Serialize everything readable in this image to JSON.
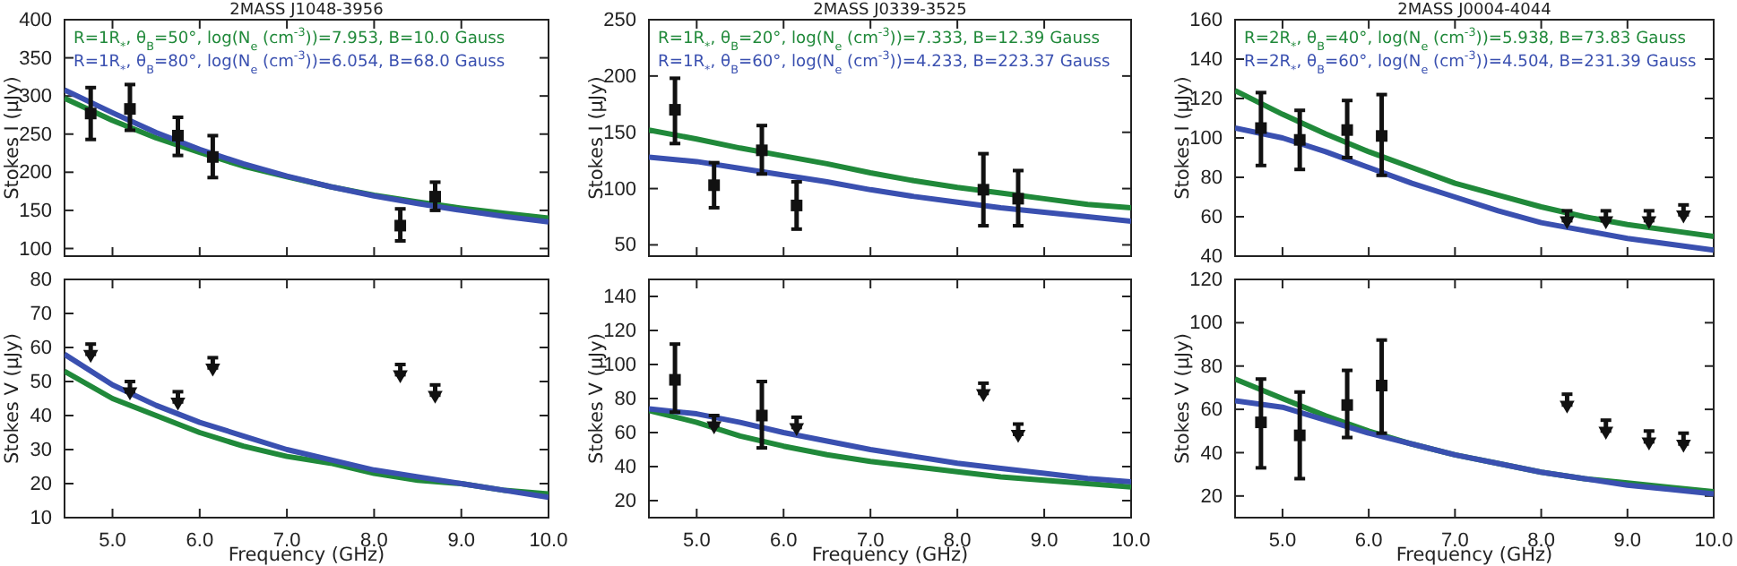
{
  "chart_data": [
    {
      "type": "line",
      "title": "2MASS J1048-3956",
      "ylabel": "Stokes I (μJy)",
      "xlim": [
        4.45,
        10.0
      ],
      "ylim": [
        90,
        400
      ],
      "xticks": [
        {
          "value": 5,
          "label": null
        },
        {
          "value": 6,
          "label": null
        },
        {
          "value": 7,
          "label": null
        },
        {
          "value": 8,
          "label": null
        },
        {
          "value": 9,
          "label": null
        },
        {
          "value": 10,
          "label": null
        }
      ],
      "yticks": [
        100,
        150,
        200,
        250,
        300,
        350,
        400
      ],
      "tick_labels": "y",
      "series": [
        {
          "name": "R=1R$_{*}$, θ$_{B}$=50°, log(N$_{e}$ (cm$^{-3}$))=7.953, B=10.0 Gauss",
          "color": "#20893a",
          "x": [
            4.45,
            5,
            5.5,
            6,
            6.5,
            7,
            7.5,
            8,
            8.5,
            9,
            9.5,
            10
          ],
          "values": [
            297,
            268,
            245,
            226,
            208,
            194,
            181,
            170,
            161,
            153,
            146,
            140
          ]
        },
        {
          "name": "R=1R$_{*}$, θ$_{B}$=80°, log(N$_{e}$ (cm$^{-3}$))=6.054, B=68.0 Gauss",
          "color": "#3a50b0",
          "x": [
            4.45,
            5,
            5.5,
            6,
            6.5,
            7,
            7.5,
            8,
            8.5,
            9,
            9.5,
            10
          ],
          "values": [
            308,
            278,
            252,
            230,
            211,
            195,
            181,
            169,
            159,
            150,
            142,
            135
          ]
        },
        {
          "color": "#111111",
          "type": "scatter",
          "marker": "square",
          "x": [
            4.75,
            5.2,
            5.75,
            6.15,
            8.3,
            8.7
          ],
          "values": [
            277,
            283,
            248,
            220,
            130,
            168
          ],
          "errors": [
            [
              243,
              311
            ],
            [
              255,
              315
            ],
            [
              222,
              272
            ],
            [
              193,
              248
            ],
            [
              110,
              152
            ],
            [
              150,
              187
            ]
          ]
        }
      ]
    },
    {
      "type": "line",
      "title": "2MASS J0339-3525",
      "ylabel": "Stokes I (μJy)",
      "xlim": [
        4.45,
        10.0
      ],
      "ylim": [
        40,
        250
      ],
      "xticks": [
        {
          "value": 5,
          "label": null
        },
        {
          "value": 6,
          "label": null
        },
        {
          "value": 7,
          "label": null
        },
        {
          "value": 8,
          "label": null
        },
        {
          "value": 9,
          "label": null
        },
        {
          "value": 10,
          "label": null
        }
      ],
      "yticks": [
        50,
        100,
        150,
        200,
        250
      ],
      "tick_labels": "y",
      "series": [
        {
          "name": "R=1R$_{*}$, θ$_{B}$=20°, log(N$_{e}$ (cm$^{-3}$))=7.333, B=12.39 Gauss",
          "color": "#20893a",
          "x": [
            4.45,
            5,
            5.5,
            6,
            6.5,
            7,
            7.5,
            8,
            8.5,
            9,
            9.5,
            10
          ],
          "values": [
            152,
            144,
            136,
            129,
            122,
            114,
            107,
            101,
            96,
            91,
            86,
            83
          ]
        },
        {
          "name": "R=1R$_{*}$, θ$_{B}$=60°, log(N$_{e}$ (cm$^{-3}$))=4.233, B=223.37 Gauss",
          "color": "#3a50b0",
          "x": [
            4.45,
            5,
            5.5,
            6,
            6.5,
            7,
            7.5,
            8,
            8.5,
            9,
            9.5,
            10
          ],
          "values": [
            128,
            124,
            118,
            112,
            106,
            99,
            93,
            88,
            83,
            79,
            75,
            71
          ]
        },
        {
          "color": "#111111",
          "type": "scatter",
          "marker": "square",
          "x": [
            4.75,
            5.2,
            5.75,
            6.15,
            8.3,
            8.7
          ],
          "values": [
            170,
            103,
            134,
            85,
            99,
            91
          ],
          "errors": [
            [
              140,
              198
            ],
            [
              83,
              123
            ],
            [
              113,
              156
            ],
            [
              64,
              106
            ],
            [
              67,
              131
            ],
            [
              67,
              116
            ]
          ]
        }
      ]
    },
    {
      "type": "line",
      "title": "2MASS J0004-4044",
      "ylabel": "Stokes I (μJy)",
      "xlim": [
        4.45,
        10.0
      ],
      "ylim": [
        40,
        160
      ],
      "xticks": [
        {
          "value": 5,
          "label": null
        },
        {
          "value": 6,
          "label": null
        },
        {
          "value": 7,
          "label": null
        },
        {
          "value": 8,
          "label": null
        },
        {
          "value": 9,
          "label": null
        },
        {
          "value": 10,
          "label": null
        }
      ],
      "yticks": [
        40,
        60,
        80,
        100,
        120,
        140,
        160
      ],
      "tick_labels": "y",
      "series": [
        {
          "name": "R=2R$_{*}$, θ$_{B}$=40°, log(N$_{e}$ (cm$^{-3}$))=5.938, B=73.83 Gauss",
          "color": "#20893a",
          "x": [
            4.45,
            5,
            5.5,
            6,
            6.5,
            7,
            7.5,
            8,
            8.5,
            9,
            9.5,
            10
          ],
          "values": [
            124,
            112,
            102,
            93,
            85,
            77,
            71,
            65,
            60,
            56,
            53,
            50
          ]
        },
        {
          "name": "R=2R$_{*}$, θ$_{B}$=60°, log(N$_{e}$ (cm$^{-3}$))=4.504, B=231.39 Gauss",
          "color": "#3a50b0",
          "x": [
            4.45,
            5,
            5.5,
            6,
            6.5,
            7,
            7.5,
            8,
            8.5,
            9,
            9.5,
            10
          ],
          "values": [
            105,
            100,
            93,
            85,
            77,
            70,
            63,
            57,
            53,
            49,
            46,
            43
          ]
        },
        {
          "color": "#111111",
          "type": "scatter",
          "marker": "square",
          "x": [
            4.75,
            5.2,
            5.75,
            6.15
          ],
          "values": [
            105,
            99,
            104,
            101
          ],
          "errors": [
            [
              86,
              123
            ],
            [
              84,
              114
            ],
            [
              90,
              119
            ],
            [
              81,
              122
            ]
          ]
        },
        {
          "color": "#111111",
          "type": "scatter",
          "marker": "triangle",
          "x": [
            8.3,
            8.75,
            9.25,
            9.65
          ],
          "values": [
            58,
            58,
            58,
            61
          ],
          "errors": [
            [
              58,
              63
            ],
            [
              58,
              63
            ],
            [
              58,
              63
            ],
            [
              61,
              66
            ]
          ]
        }
      ]
    },
    {
      "type": "line",
      "xlabel": "Frequency (GHz)",
      "ylabel": "Stokes V (μJy)",
      "xlim": [
        4.45,
        10.0
      ],
      "ylim": [
        10,
        80
      ],
      "xticks": [
        {
          "value": 5,
          "label": "5.0"
        },
        {
          "value": 6,
          "label": "6.0"
        },
        {
          "value": 7,
          "label": "7.0"
        },
        {
          "value": 8,
          "label": "8.0"
        },
        {
          "value": 9,
          "label": "9.0"
        },
        {
          "value": 10,
          "label": "10.0"
        }
      ],
      "yticks": [
        10,
        20,
        30,
        40,
        50,
        60,
        70,
        80
      ],
      "series": [
        {
          "color": "#20893a",
          "x": [
            4.45,
            5,
            5.5,
            6,
            6.5,
            7,
            7.5,
            8,
            8.5,
            9,
            9.5,
            10
          ],
          "values": [
            53,
            45,
            40,
            35,
            31,
            28,
            26,
            23,
            21,
            20,
            18,
            17
          ]
        },
        {
          "color": "#3a50b0",
          "x": [
            4.45,
            5,
            5.5,
            6,
            6.5,
            7,
            7.5,
            8,
            8.5,
            9,
            9.5,
            10
          ],
          "values": [
            58,
            49,
            43,
            38,
            34,
            30,
            27,
            24,
            22,
            20,
            18,
            16
          ]
        },
        {
          "color": "#111111",
          "type": "scatter",
          "marker": "triangle",
          "x": [
            4.75,
            5.2,
            5.75,
            6.15,
            8.3,
            8.7
          ],
          "values": [
            58,
            47,
            44,
            54,
            52,
            46
          ],
          "errors": [
            [
              58,
              61
            ],
            [
              47,
              50
            ],
            [
              44,
              47
            ],
            [
              54,
              57
            ],
            [
              52,
              55
            ],
            [
              46,
              49
            ]
          ]
        }
      ]
    },
    {
      "type": "line",
      "xlabel": "Frequency (GHz)",
      "ylabel": "Stokes V (μJy)",
      "xlim": [
        4.45,
        10.0
      ],
      "ylim": [
        10,
        150
      ],
      "xticks": [
        {
          "value": 5,
          "label": "5.0"
        },
        {
          "value": 6,
          "label": "6.0"
        },
        {
          "value": 7,
          "label": "7.0"
        },
        {
          "value": 8,
          "label": "8.0"
        },
        {
          "value": 9,
          "label": "9.0"
        },
        {
          "value": 10,
          "label": "10.0"
        }
      ],
      "yticks": [
        20,
        40,
        60,
        80,
        100,
        120,
        140
      ],
      "series": [
        {
          "color": "#20893a",
          "x": [
            4.45,
            5,
            5.5,
            6,
            6.5,
            7,
            7.5,
            8,
            8.5,
            9,
            9.5,
            10
          ],
          "values": [
            73,
            66,
            58,
            52,
            47,
            43,
            40,
            37,
            34,
            32,
            30,
            28
          ]
        },
        {
          "color": "#3a50b0",
          "x": [
            4.45,
            5,
            5.5,
            6,
            6.5,
            7,
            7.5,
            8,
            8.5,
            9,
            9.5,
            10
          ],
          "values": [
            74,
            71,
            66,
            60,
            55,
            50,
            46,
            42,
            39,
            36,
            33,
            31
          ]
        },
        {
          "color": "#111111",
          "type": "scatter",
          "marker": "square",
          "x": [
            4.75,
            5.75
          ],
          "values": [
            91,
            70
          ],
          "errors": [
            [
              72,
              112
            ],
            [
              51,
              90
            ]
          ]
        },
        {
          "color": "#111111",
          "type": "scatter",
          "marker": "triangle",
          "x": [
            5.2,
            6.15,
            8.3,
            8.7
          ],
          "values": [
            64,
            63,
            83,
            59
          ],
          "errors": [
            [
              64,
              70
            ],
            [
              63,
              69
            ],
            [
              83,
              89
            ],
            [
              59,
              65
            ]
          ]
        }
      ]
    },
    {
      "type": "line",
      "xlabel": "Frequency (GHz)",
      "ylabel": "Stokes V (μJy)",
      "xlim": [
        4.45,
        10.0
      ],
      "ylim": [
        10,
        120
      ],
      "xticks": [
        {
          "value": 5,
          "label": "5.0"
        },
        {
          "value": 6,
          "label": "6.0"
        },
        {
          "value": 7,
          "label": "7.0"
        },
        {
          "value": 8,
          "label": "8.0"
        },
        {
          "value": 9,
          "label": "9.0"
        },
        {
          "value": 10,
          "label": "10.0"
        }
      ],
      "yticks": [
        20,
        40,
        60,
        80,
        100,
        120
      ],
      "series": [
        {
          "color": "#20893a",
          "x": [
            4.45,
            5,
            5.5,
            6,
            6.5,
            7,
            7.5,
            8,
            8.5,
            9,
            9.5,
            10
          ],
          "values": [
            74,
            65,
            57,
            50,
            44,
            39,
            35,
            31,
            28,
            26,
            24,
            22
          ]
        },
        {
          "color": "#3a50b0",
          "x": [
            4.45,
            5,
            5.5,
            6,
            6.5,
            7,
            7.5,
            8,
            8.5,
            9,
            9.5,
            10
          ],
          "values": [
            64,
            61,
            55,
            49,
            44,
            39,
            35,
            31,
            28,
            25,
            23,
            21
          ]
        },
        {
          "color": "#111111",
          "type": "scatter",
          "marker": "square",
          "x": [
            4.75,
            5.2,
            5.75,
            6.15
          ],
          "values": [
            54,
            48,
            62,
            71
          ],
          "errors": [
            [
              33,
              74
            ],
            [
              28,
              68
            ],
            [
              47,
              78
            ],
            [
              49,
              92
            ]
          ]
        },
        {
          "color": "#111111",
          "type": "scatter",
          "marker": "triangle",
          "x": [
            8.3,
            8.75,
            9.25,
            9.65
          ],
          "values": [
            62,
            50,
            45,
            44
          ],
          "errors": [
            [
              62,
              67
            ],
            [
              50,
              55
            ],
            [
              45,
              50
            ],
            [
              44,
              49
            ]
          ]
        }
      ]
    }
  ]
}
